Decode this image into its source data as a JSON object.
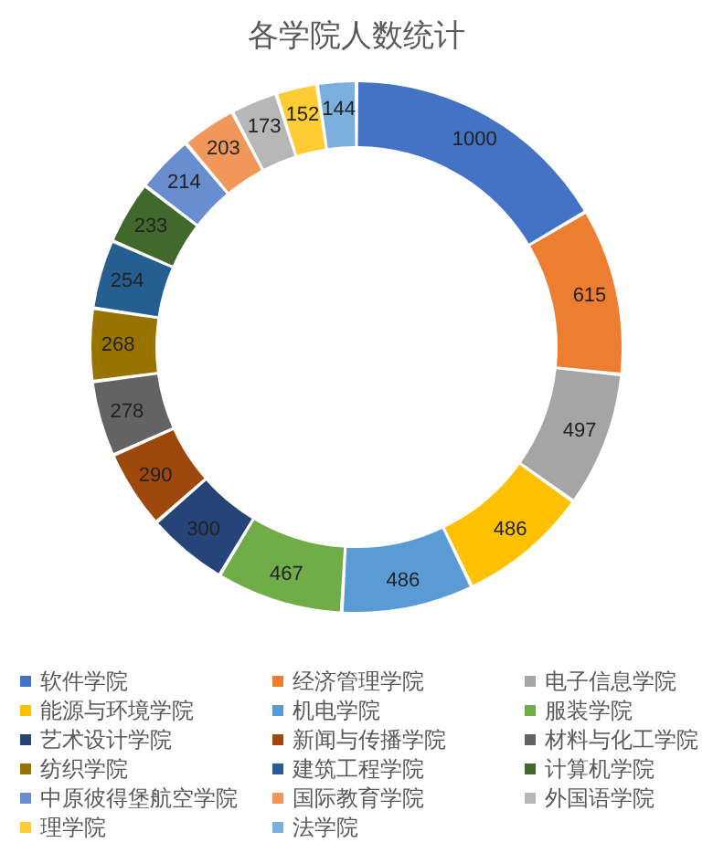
{
  "chart_data": {
    "type": "donut",
    "title": "各学院人数统计",
    "categories": [
      "软件学院",
      "经济管理学院",
      "电子信息学院",
      "能源与环境学院",
      "机电学院",
      "服装学院",
      "艺术设计学院",
      "新闻与传播学院",
      "材料与化工学院",
      "纺织学院",
      "建筑工程学院",
      "计算机学院",
      "中原彼得堡航空学院",
      "国际教育学院",
      "外国语学院",
      "理学院",
      "法学院"
    ],
    "values": [
      1000,
      615,
      497,
      486,
      486,
      467,
      300,
      290,
      278,
      268,
      254,
      233,
      214,
      203,
      173,
      152,
      144
    ],
    "colors": [
      "#4472c4",
      "#ed7d31",
      "#a5a5a5",
      "#ffc000",
      "#5b9bd5",
      "#70ad47",
      "#264478",
      "#9e480e",
      "#636363",
      "#997300",
      "#255e91",
      "#43682b",
      "#698ed0",
      "#f1975a",
      "#b7b7b7",
      "#ffcd33",
      "#7cafdd"
    ],
    "data_labels": true,
    "legend": "bottom"
  }
}
